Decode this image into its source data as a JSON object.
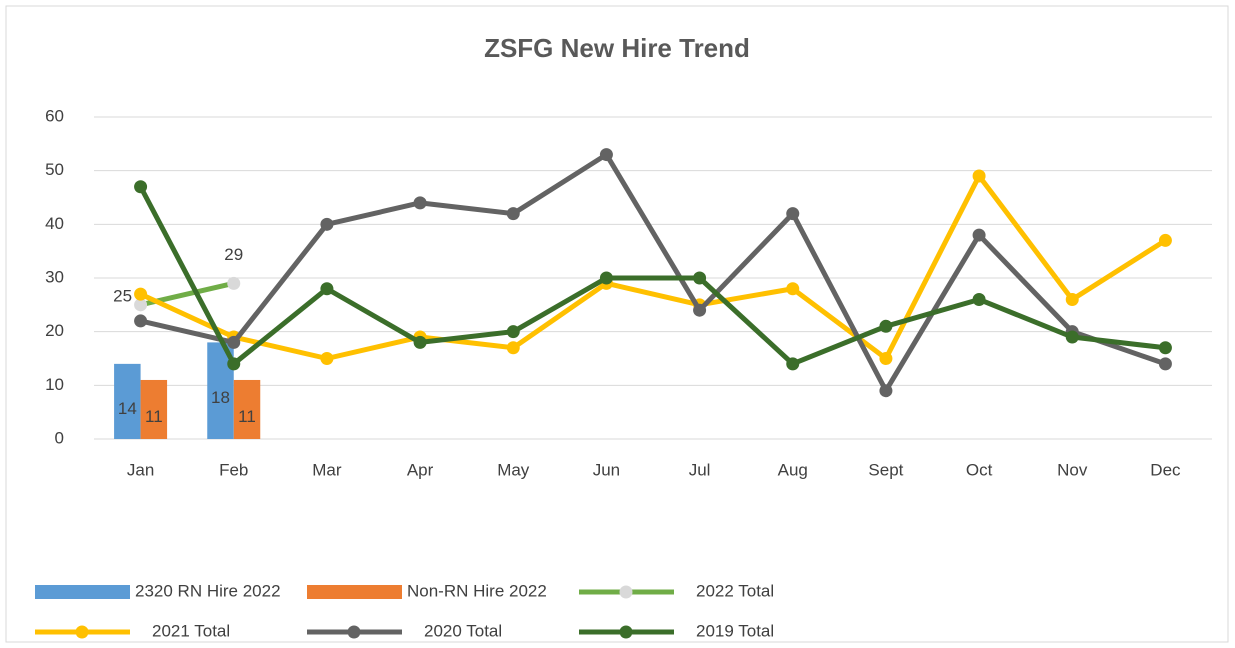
{
  "chart_data": {
    "type": "combo",
    "title": "ZSFG New Hire Trend",
    "categories": [
      "Jan",
      "Feb",
      "Mar",
      "Apr",
      "May",
      "Jun",
      "Jul",
      "Aug",
      "Sept",
      "Oct",
      "Nov",
      "Dec"
    ],
    "ylim": [
      0,
      60
    ],
    "yticks": [
      0,
      10,
      20,
      30,
      40,
      50,
      60
    ],
    "grid": true,
    "legend": "bottom",
    "series": [
      {
        "name": "2320 RN Hire 2022",
        "type": "bar",
        "color": "#5b9bd5",
        "data_labels": true,
        "values": [
          14,
          18,
          null,
          null,
          null,
          null,
          null,
          null,
          null,
          null,
          null,
          null
        ]
      },
      {
        "name": "Non-RN Hire 2022",
        "type": "bar",
        "color": "#ed7d31",
        "data_labels": true,
        "values": [
          11,
          11,
          null,
          null,
          null,
          null,
          null,
          null,
          null,
          null,
          null,
          null
        ]
      },
      {
        "name": "2022 Total",
        "type": "line",
        "color": "#70ad47",
        "marker_color": "#d9d9d9",
        "data_labels": true,
        "values": [
          25,
          29,
          null,
          null,
          null,
          null,
          null,
          null,
          null,
          null,
          null,
          null
        ]
      },
      {
        "name": "2021 Total",
        "type": "line",
        "color": "#ffc000",
        "marker_color": "#ffc000",
        "data_labels": false,
        "values": [
          27,
          19,
          15,
          19,
          17,
          29,
          25,
          28,
          15,
          49,
          26,
          37
        ]
      },
      {
        "name": "2020 Total",
        "type": "line",
        "color": "#636363",
        "marker_color": "#636363",
        "data_labels": false,
        "values": [
          22,
          18,
          40,
          44,
          42,
          53,
          24,
          42,
          9,
          38,
          20,
          14
        ]
      },
      {
        "name": "2019 Total",
        "type": "line",
        "color": "#3b6e2a",
        "marker_color": "#3b6e2a",
        "data_labels": false,
        "values": [
          47,
          14,
          28,
          18,
          20,
          30,
          30,
          14,
          21,
          26,
          19,
          17
        ]
      }
    ]
  }
}
